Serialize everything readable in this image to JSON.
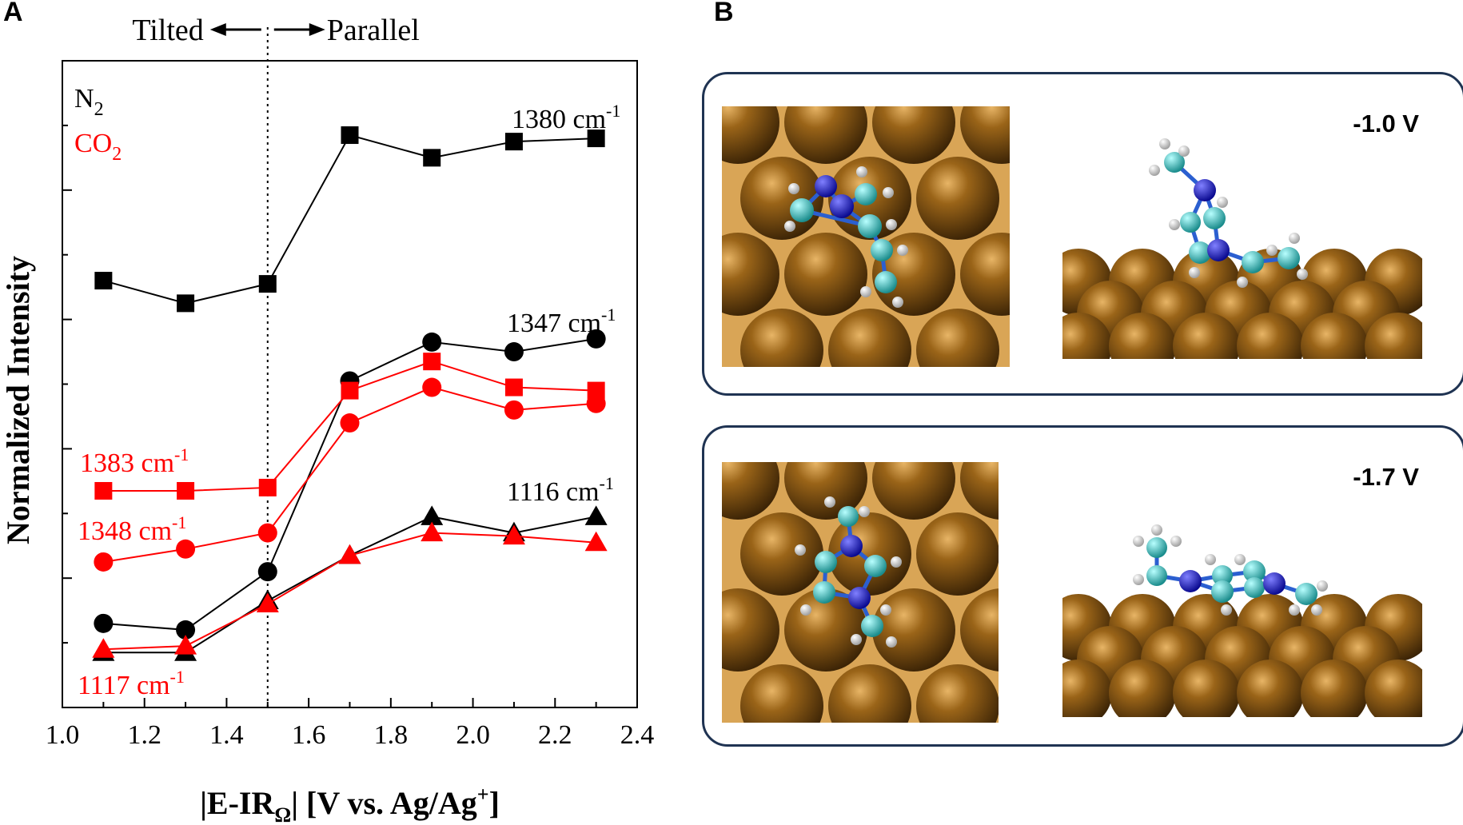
{
  "panels": {
    "a_label": "A",
    "b_label": "B",
    "tilted_label": "Tilted",
    "parallel_label": "Parallel"
  },
  "simulation": {
    "top_label": "-1.0 V",
    "bottom_label": "-1.7 V",
    "colors": {
      "copper": "#8a5510",
      "carbon": "#35b8b8",
      "nitrogen": "#1010d8",
      "hydrogen": "#ffffff",
      "frame": "#1f3352"
    }
  },
  "chart_data": {
    "type": "line",
    "xlabel": "|E-IRΩ| [V vs. Ag/Ag+]",
    "ylabel": "Normalized Intensity",
    "xlim": [
      1.0,
      2.4
    ],
    "ylim": [
      0,
      10
    ],
    "x_ticks": [
      "1.0",
      "1.2",
      "1.4",
      "1.6",
      "1.8",
      "2.0",
      "2.2",
      "2.4"
    ],
    "vline_x": 1.5,
    "legend": [
      {
        "text": "N",
        "sub": "2",
        "color": "#000000"
      },
      {
        "text": "CO",
        "sub": "2",
        "color": "#ff0000"
      }
    ],
    "series": [
      {
        "name": "1380 cm-1",
        "color": "#000000",
        "marker": "square",
        "x": [
          1.1,
          1.3,
          1.5,
          1.7,
          1.9,
          2.1,
          2.3
        ],
        "values": [
          6.6,
          6.25,
          6.55,
          8.85,
          8.5,
          8.75,
          8.8
        ]
      },
      {
        "name": "1347 cm-1",
        "color": "#000000",
        "marker": "circle",
        "x": [
          1.1,
          1.3,
          1.5,
          1.7,
          1.9,
          2.1,
          2.3
        ],
        "values": [
          1.3,
          1.2,
          2.1,
          5.05,
          5.65,
          5.5,
          5.7
        ]
      },
      {
        "name": "1116 cm-1",
        "color": "#000000",
        "marker": "triangle",
        "x": [
          1.1,
          1.3,
          1.5,
          1.7,
          1.9,
          2.1,
          2.3
        ],
        "values": [
          0.85,
          0.85,
          1.65,
          2.35,
          2.95,
          2.7,
          2.95
        ]
      },
      {
        "name": "1383 cm-1",
        "color": "#ff0000",
        "marker": "square",
        "x": [
          1.1,
          1.3,
          1.5,
          1.7,
          1.9,
          2.1,
          2.3
        ],
        "values": [
          3.35,
          3.35,
          3.4,
          4.9,
          5.35,
          4.95,
          4.9
        ]
      },
      {
        "name": "1348 cm-1",
        "color": "#ff0000",
        "marker": "circle",
        "x": [
          1.1,
          1.3,
          1.5,
          1.7,
          1.9,
          2.1,
          2.3
        ],
        "values": [
          2.25,
          2.45,
          2.7,
          4.4,
          4.95,
          4.6,
          4.7
        ]
      },
      {
        "name": "1117 cm-1",
        "color": "#ff0000",
        "marker": "triangle",
        "x": [
          1.1,
          1.3,
          1.5,
          1.7,
          1.9,
          2.1,
          2.3
        ],
        "values": [
          0.9,
          0.95,
          1.6,
          2.35,
          2.7,
          2.65,
          2.55
        ]
      }
    ],
    "annotations": [
      {
        "value": "1380",
        "unit": "cm",
        "sup": "-1",
        "color": "#000000"
      },
      {
        "value": "1347",
        "unit": "cm",
        "sup": "-1",
        "color": "#000000"
      },
      {
        "value": "1116",
        "unit": "cm",
        "sup": "-1",
        "color": "#000000"
      },
      {
        "value": "1383",
        "unit": "cm",
        "sup": "-1",
        "color": "#ff0000"
      },
      {
        "value": "1348",
        "unit": "cm",
        "sup": "-1",
        "color": "#ff0000"
      },
      {
        "value": "1117",
        "unit": "cm",
        "sup": "-1",
        "color": "#ff0000"
      }
    ]
  }
}
